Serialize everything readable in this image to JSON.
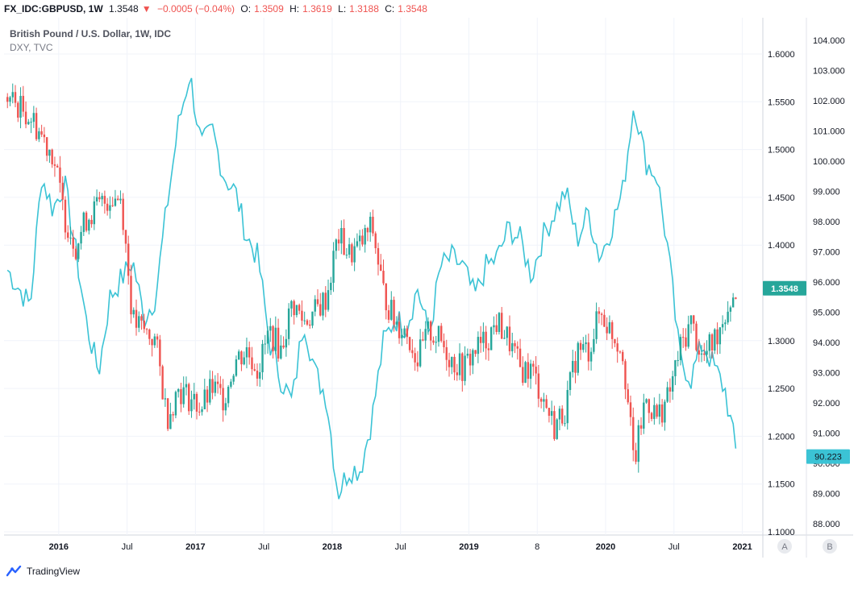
{
  "header": {
    "symbol": "FX_IDC:GBPUSD, 1W",
    "price": "1.3548",
    "change_arrow": "▼",
    "change": "−0.0005 (−0.04%)",
    "open_label": "O:",
    "open": "1.3509",
    "high_label": "H:",
    "high": "1.3619",
    "low_label": "L:",
    "low": "1.3188",
    "close_label": "C:",
    "close": "1.3548"
  },
  "legend": {
    "main_series": "British Pound / U.S. Dollar, 1W, IDC",
    "compare_series": "DXY, TVC"
  },
  "axis_buttons": {
    "a": "A",
    "b": "B"
  },
  "footer": {
    "brand": "TradingView"
  },
  "colors": {
    "up": "#26a69a",
    "down": "#ef5350",
    "dxy": "#3bc3d5",
    "gbp_tag": "#26a69a",
    "dxy_tag": "#3bc3d5",
    "grid": "#f0f3fa"
  },
  "chart_data": {
    "type": "candlestick+line",
    "x_ticks": [
      "2016",
      "Jul",
      "2017",
      "Jul",
      "2018",
      "Jul",
      "2019",
      "8",
      "Jul",
      "2020",
      "Jul",
      "2021"
    ],
    "gbpusd_axis": {
      "ticks": [
        "1.6000",
        "1.5500",
        "1.5000",
        "1.4500",
        "1.4000",
        "1.3000",
        "1.2500",
        "1.2000",
        "1.1500",
        "1.1000"
      ],
      "range": [
        1.1,
        1.6
      ],
      "last_value": "1.3548"
    },
    "dxy_axis": {
      "ticks": [
        "104.000",
        "103.000",
        "102.000",
        "101.000",
        "100.000",
        "99.000",
        "98.000",
        "97.000",
        "96.000",
        "95.000",
        "94.000",
        "93.000",
        "92.000",
        "91.000",
        "90.000",
        "89.000",
        "88.000"
      ],
      "range": [
        88,
        104
      ],
      "last_value": "90.223"
    },
    "gbpusd_weekly_close_approx": [
      [
        "2015-08",
        1.555
      ],
      [
        "2015-10",
        1.535
      ],
      [
        "2015-12",
        1.495
      ],
      [
        "2016-01",
        1.43
      ],
      [
        "2016-02",
        1.4
      ],
      [
        "2016-03",
        1.43
      ],
      [
        "2016-04",
        1.44
      ],
      [
        "2016-05",
        1.45
      ],
      [
        "2016-06",
        1.45
      ],
      [
        "2016-07",
        1.32
      ],
      [
        "2016-08",
        1.31
      ],
      [
        "2016-09",
        1.3
      ],
      [
        "2016-10",
        1.22
      ],
      [
        "2016-11",
        1.25
      ],
      [
        "2016-12",
        1.24
      ],
      [
        "2017-01",
        1.23
      ],
      [
        "2017-02",
        1.25
      ],
      [
        "2017-03",
        1.24
      ],
      [
        "2017-04",
        1.28
      ],
      [
        "2017-05",
        1.29
      ],
      [
        "2017-06",
        1.27
      ],
      [
        "2017-07",
        1.31
      ],
      [
        "2017-08",
        1.29
      ],
      [
        "2017-09",
        1.34
      ],
      [
        "2017-10",
        1.32
      ],
      [
        "2017-11",
        1.33
      ],
      [
        "2017-12",
        1.345
      ],
      [
        "2018-01",
        1.41
      ],
      [
        "2018-02",
        1.39
      ],
      [
        "2018-03",
        1.4
      ],
      [
        "2018-04",
        1.42
      ],
      [
        "2018-05",
        1.35
      ],
      [
        "2018-06",
        1.32
      ],
      [
        "2018-07",
        1.31
      ],
      [
        "2018-08",
        1.28
      ],
      [
        "2018-09",
        1.31
      ],
      [
        "2018-10",
        1.3
      ],
      [
        "2018-11",
        1.28
      ],
      [
        "2018-12",
        1.27
      ],
      [
        "2019-01",
        1.29
      ],
      [
        "2019-02",
        1.3
      ],
      [
        "2019-03",
        1.32
      ],
      [
        "2019-04",
        1.3
      ],
      [
        "2019-05",
        1.27
      ],
      [
        "2019-06",
        1.27
      ],
      [
        "2019-07",
        1.24
      ],
      [
        "2019-08",
        1.21
      ],
      [
        "2019-09",
        1.23
      ],
      [
        "2019-10",
        1.29
      ],
      [
        "2019-11",
        1.29
      ],
      [
        "2019-12",
        1.33
      ],
      [
        "2020-01",
        1.31
      ],
      [
        "2020-02",
        1.29
      ],
      [
        "2020-03",
        1.17
      ],
      [
        "2020-04",
        1.24
      ],
      [
        "2020-05",
        1.22
      ],
      [
        "2020-06",
        1.24
      ],
      [
        "2020-07",
        1.29
      ],
      [
        "2020-08",
        1.32
      ],
      [
        "2020-09",
        1.28
      ],
      [
        "2020-10",
        1.3
      ],
      [
        "2020-11",
        1.33
      ],
      [
        "2020-12",
        1.3548
      ]
    ],
    "dxy_weekly_approx": [
      [
        "2015-08",
        96.4
      ],
      [
        "2015-10",
        95.2
      ],
      [
        "2015-11",
        99.5
      ],
      [
        "2015-12",
        98.4
      ],
      [
        "2016-01",
        99.3
      ],
      [
        "2016-02",
        97.0
      ],
      [
        "2016-03",
        94.5
      ],
      [
        "2016-04",
        93.0
      ],
      [
        "2016-05",
        95.5
      ],
      [
        "2016-06",
        96.1
      ],
      [
        "2016-07",
        96.7
      ],
      [
        "2016-08",
        94.8
      ],
      [
        "2016-09",
        95.5
      ],
      [
        "2016-10",
        98.5
      ],
      [
        "2016-11",
        101.2
      ],
      [
        "2016-12",
        102.9
      ],
      [
        "2017-01",
        100.5
      ],
      [
        "2017-02",
        101.0
      ],
      [
        "2017-03",
        99.5
      ],
      [
        "2017-04",
        99.0
      ],
      [
        "2017-05",
        97.5
      ],
      [
        "2017-06",
        96.8
      ],
      [
        "2017-07",
        94.0
      ],
      [
        "2017-08",
        92.8
      ],
      [
        "2017-09",
        92.0
      ],
      [
        "2017-10",
        94.8
      ],
      [
        "2017-11",
        93.0
      ],
      [
        "2017-12",
        92.2
      ],
      [
        "2018-01",
        89.0
      ],
      [
        "2018-02",
        89.8
      ],
      [
        "2018-03",
        89.8
      ],
      [
        "2018-04",
        91.5
      ],
      [
        "2018-05",
        94.0
      ],
      [
        "2018-06",
        94.8
      ],
      [
        "2018-07",
        94.5
      ],
      [
        "2018-08",
        95.8
      ],
      [
        "2018-09",
        94.2
      ],
      [
        "2018-10",
        96.5
      ],
      [
        "2018-11",
        96.8
      ],
      [
        "2018-12",
        96.5
      ],
      [
        "2019-01",
        95.5
      ],
      [
        "2019-02",
        96.5
      ],
      [
        "2019-03",
        96.8
      ],
      [
        "2019-04",
        97.8
      ],
      [
        "2019-05",
        97.4
      ],
      [
        "2019-06",
        96.2
      ],
      [
        "2019-07",
        97.5
      ],
      [
        "2019-08",
        98.3
      ],
      [
        "2019-09",
        99.0
      ],
      [
        "2019-10",
        97.4
      ],
      [
        "2019-11",
        98.3
      ],
      [
        "2019-12",
        96.8
      ],
      [
        "2020-01",
        97.8
      ],
      [
        "2020-02",
        99.0
      ],
      [
        "2020-03",
        102.0
      ],
      [
        "2020-04",
        100.0
      ],
      [
        "2020-05",
        99.5
      ],
      [
        "2020-06",
        97.0
      ],
      [
        "2020-07",
        93.5
      ],
      [
        "2020-08",
        92.8
      ],
      [
        "2020-09",
        94.0
      ],
      [
        "2020-10",
        93.2
      ],
      [
        "2020-11",
        92.4
      ],
      [
        "2020-12",
        90.223
      ]
    ],
    "grid": true
  }
}
